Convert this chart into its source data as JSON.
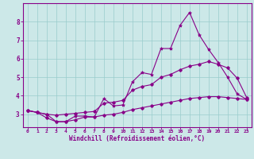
{
  "xlabel": "Windchill (Refroidissement éolien,°C)",
  "background_color": "#cce8e8",
  "line_color": "#880088",
  "grid_color": "#99cccc",
  "x_values": [
    0,
    1,
    2,
    3,
    4,
    5,
    6,
    7,
    8,
    9,
    10,
    11,
    12,
    13,
    14,
    15,
    16,
    17,
    18,
    19,
    20,
    21,
    22,
    23
  ],
  "line1_y": [
    3.2,
    3.1,
    3.0,
    2.6,
    2.6,
    2.9,
    2.9,
    2.85,
    3.85,
    3.45,
    3.5,
    4.75,
    5.25,
    5.15,
    6.55,
    6.55,
    7.8,
    8.5,
    7.3,
    6.5,
    5.8,
    5.0,
    4.1,
    3.8
  ],
  "line2_y": [
    3.2,
    3.1,
    3.0,
    2.95,
    3.0,
    3.05,
    3.1,
    3.15,
    3.6,
    3.65,
    3.75,
    4.3,
    4.5,
    4.6,
    5.0,
    5.15,
    5.4,
    5.6,
    5.7,
    5.85,
    5.7,
    5.5,
    4.95,
    3.9
  ],
  "line3_y": [
    3.2,
    3.1,
    2.8,
    2.6,
    2.6,
    2.7,
    2.85,
    2.85,
    2.95,
    3.0,
    3.1,
    3.25,
    3.35,
    3.45,
    3.55,
    3.65,
    3.75,
    3.85,
    3.9,
    3.95,
    3.95,
    3.9,
    3.85,
    3.8
  ],
  "xlim": [
    -0.5,
    23.5
  ],
  "ylim": [
    2.3,
    9.0
  ],
  "yticks": [
    3,
    4,
    5,
    6,
    7,
    8
  ],
  "xticks": [
    0,
    1,
    2,
    3,
    4,
    5,
    6,
    7,
    8,
    9,
    10,
    11,
    12,
    13,
    14,
    15,
    16,
    17,
    18,
    19,
    20,
    21,
    22,
    23
  ]
}
